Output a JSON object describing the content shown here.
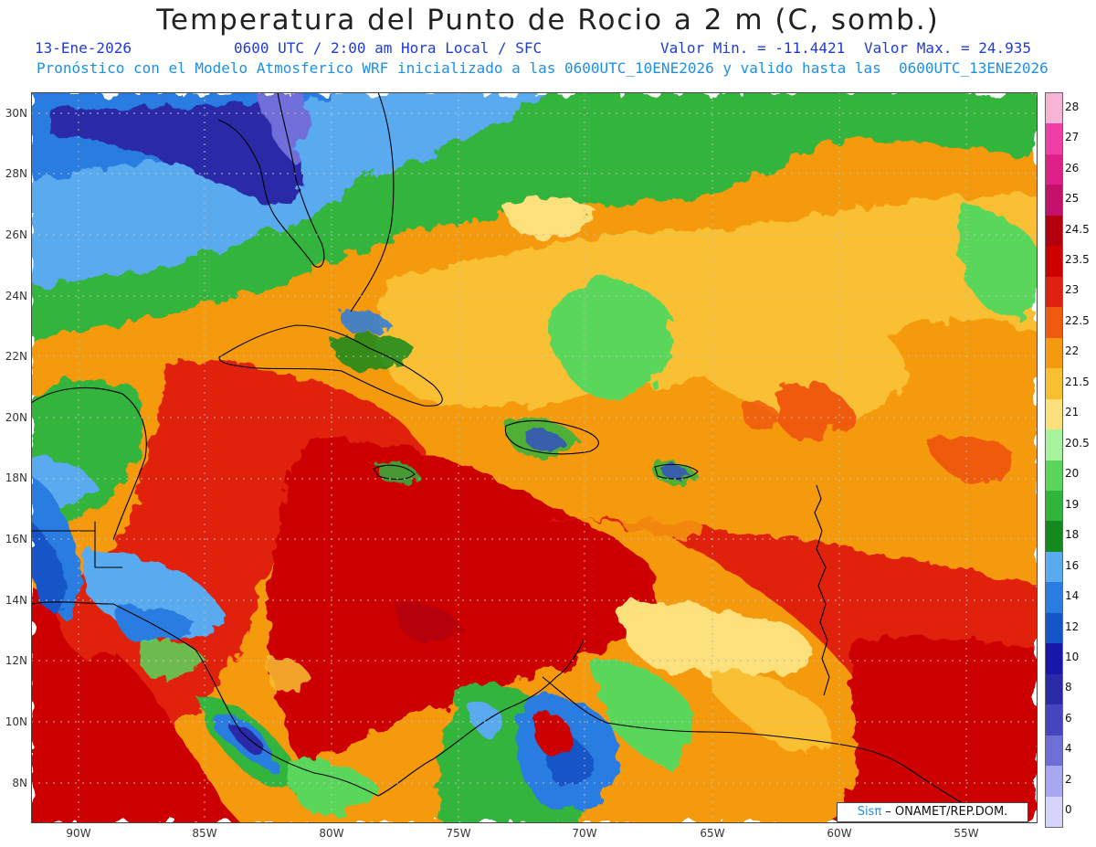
{
  "title": "Temperatura del Punto de Rocio a 2 m (C, somb.)",
  "subtitle": {
    "date": "13-Ene-2026",
    "time": "0600 UTC / 2:00 am Hora Local / SFC",
    "min": "Valor Min. = -11.4421",
    "max": "Valor Max. = 24.935"
  },
  "model_line": "Pronóstico con el Modelo Atmosferico WRF inicializado a las 0600UTC_10ENE2026 y valido hasta las  0600UTC_13ENE2026",
  "axes": {
    "lat_labels": [
      "30N",
      "28N",
      "26N",
      "24N",
      "22N",
      "20N",
      "18N",
      "16N",
      "14N",
      "12N",
      "10N",
      "8N"
    ],
    "lon_labels": [
      "90W",
      "85W",
      "80W",
      "75W",
      "70W",
      "65W",
      "60W",
      "55W"
    ]
  },
  "legend": {
    "labels": [
      "28",
      "27",
      "26",
      "25",
      "24.5",
      "23.5",
      "23",
      "22.5",
      "22",
      "21.5",
      "21",
      "20.5",
      "20",
      "19",
      "18",
      "16",
      "14",
      "12",
      "10",
      "8",
      "6",
      "4",
      "2",
      "0"
    ],
    "colors": [
      "#f6b4d4",
      "#ef3fa6",
      "#e0208a",
      "#c4126a",
      "#b3000e",
      "#cc0000",
      "#e02010",
      "#f05a10",
      "#f59a10",
      "#f8c030",
      "#fbe07c",
      "#a6f49c",
      "#5ad65a",
      "#31b43c",
      "#138a1e",
      "#5aaaf0",
      "#2a7de0",
      "#1455c8",
      "#1818a8",
      "#2a2aa8",
      "#4545c0",
      "#6f6ed8",
      "#a9a6f2",
      "#d6d4f8"
    ]
  },
  "credit": {
    "logo": "Sisπ",
    "text": " – ONAMET/REP.DOM."
  }
}
